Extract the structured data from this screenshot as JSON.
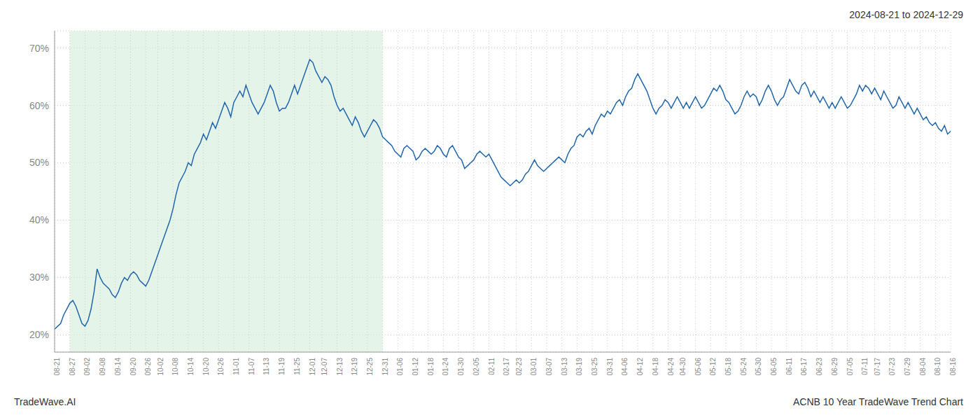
{
  "chart_data": {
    "type": "line",
    "title": "ACNB 10 Year TradeWave Trend Chart",
    "subtitle": "2024-08-21 to 2024-12-29",
    "annotations": [
      "TradeWave.AI"
    ],
    "color": "#2166ac",
    "grid": true,
    "ylim": [
      17,
      73
    ],
    "yticks": [
      {
        "value": 20,
        "label": "20%"
      },
      {
        "value": 30,
        "label": "30%"
      },
      {
        "value": 40,
        "label": "40%"
      },
      {
        "value": 50,
        "label": "50%"
      },
      {
        "value": 60,
        "label": "60%"
      },
      {
        "value": 70,
        "label": "70%"
      }
    ],
    "shade": {
      "from": "08-27",
      "to": "12-31",
      "color": "#d4edda"
    },
    "categories": [
      "08-21",
      null,
      null,
      null,
      null,
      "08-27",
      null,
      null,
      null,
      null,
      "09-02",
      null,
      null,
      null,
      null,
      "09-08",
      null,
      null,
      null,
      null,
      "09-14",
      null,
      null,
      null,
      null,
      "09-20",
      null,
      null,
      null,
      null,
      "09-26",
      null,
      null,
      null,
      "10-02",
      null,
      null,
      null,
      null,
      "10-08",
      null,
      null,
      null,
      null,
      "10-14",
      null,
      null,
      null,
      null,
      "10-20",
      null,
      null,
      null,
      null,
      "10-26",
      null,
      null,
      null,
      null,
      "11-01",
      null,
      null,
      null,
      null,
      "11-07",
      null,
      null,
      null,
      null,
      "11-13",
      null,
      null,
      null,
      null,
      "11-19",
      null,
      null,
      null,
      null,
      "11-25",
      null,
      null,
      null,
      null,
      "12-01",
      null,
      null,
      null,
      "12-07",
      null,
      null,
      null,
      null,
      "12-13",
      null,
      null,
      null,
      null,
      "12-19",
      null,
      null,
      null,
      null,
      "12-25",
      null,
      null,
      null,
      null,
      "12-31",
      null,
      null,
      null,
      null,
      "01-06",
      null,
      null,
      null,
      null,
      "01-12",
      null,
      null,
      null,
      null,
      "01-18",
      null,
      null,
      null,
      null,
      "01-24",
      null,
      null,
      null,
      null,
      "01-30",
      null,
      null,
      null,
      null,
      "02-05",
      null,
      null,
      null,
      null,
      "02-11",
      null,
      null,
      null,
      null,
      "02-17",
      null,
      null,
      null,
      "02-23",
      null,
      null,
      null,
      null,
      "03-01",
      null,
      null,
      null,
      null,
      "03-07",
      null,
      null,
      null,
      null,
      "03-13",
      null,
      null,
      null,
      null,
      "03-19",
      null,
      null,
      null,
      null,
      "03-25",
      null,
      null,
      null,
      null,
      "03-31",
      null,
      null,
      null,
      null,
      "04-06",
      null,
      null,
      null,
      null,
      "04-12",
      null,
      null,
      null,
      null,
      "04-18",
      null,
      null,
      null,
      null,
      "04-24",
      null,
      null,
      null,
      "04-30",
      null,
      null,
      null,
      null,
      "05-06",
      null,
      null,
      null,
      null,
      "05-12",
      null,
      null,
      null,
      null,
      "05-18",
      null,
      null,
      null,
      null,
      "05-24",
      null,
      null,
      null,
      null,
      "05-30",
      null,
      null,
      null,
      null,
      "06-05",
      null,
      null,
      null,
      null,
      "06-11",
      null,
      null,
      null,
      null,
      "06-17",
      null,
      null,
      null,
      null,
      "06-23",
      null,
      null,
      null,
      null,
      "06-29",
      null,
      null,
      null,
      null,
      "07-05",
      null,
      null,
      null,
      null,
      "07-11",
      null,
      null,
      null,
      "07-17",
      null,
      null,
      null,
      null,
      "07-23",
      null,
      null,
      null,
      null,
      "07-29",
      null,
      null,
      null,
      null,
      "08-04",
      null,
      null,
      null,
      null,
      "08-10",
      null,
      null,
      null,
      null,
      "08-16"
    ],
    "values": [
      21.0,
      21.5,
      22.0,
      23.5,
      24.5,
      25.5,
      26.0,
      25.0,
      23.5,
      22.0,
      21.5,
      22.5,
      24.5,
      27.5,
      31.5,
      30.0,
      29.0,
      28.5,
      28.0,
      27.0,
      26.5,
      27.5,
      29.0,
      30.0,
      29.5,
      30.5,
      31.0,
      30.5,
      29.5,
      29.0,
      28.5,
      29.5,
      31.0,
      32.5,
      34.0,
      35.5,
      37.0,
      38.5,
      40.0,
      42.0,
      44.5,
      46.5,
      47.5,
      48.5,
      50.0,
      49.5,
      51.5,
      52.5,
      53.5,
      55.0,
      54.0,
      55.5,
      57.0,
      56.0,
      57.5,
      59.0,
      60.5,
      59.5,
      58.0,
      60.5,
      61.5,
      62.5,
      61.5,
      63.5,
      62.0,
      60.5,
      59.5,
      58.5,
      59.5,
      60.5,
      62.0,
      63.5,
      62.5,
      60.5,
      59.0,
      59.5,
      59.5,
      60.5,
      62.0,
      63.5,
      62.0,
      63.5,
      65.0,
      66.5,
      68.0,
      67.5,
      66.0,
      65.0,
      64.0,
      65.0,
      64.5,
      63.5,
      61.5,
      60.0,
      59.0,
      59.5,
      58.5,
      57.5,
      56.5,
      58.0,
      57.0,
      55.5,
      54.5,
      55.5,
      56.5,
      57.5,
      57.0,
      56.0,
      54.5,
      54.0,
      53.5,
      53.0,
      52.0,
      51.5,
      51.0,
      52.5,
      53.0,
      52.5,
      52.0,
      50.5,
      51.0,
      52.0,
      52.5,
      52.0,
      51.5,
      52.0,
      53.0,
      52.5,
      51.5,
      51.0,
      52.5,
      53.0,
      52.0,
      51.0,
      50.5,
      49.0,
      49.5,
      50.0,
      50.5,
      51.5,
      52.0,
      51.5,
      51.0,
      51.5,
      50.5,
      49.5,
      48.5,
      47.5,
      47.0,
      46.5,
      46.0,
      46.5,
      47.0,
      46.5,
      47.0,
      48.0,
      48.5,
      49.5,
      50.5,
      49.5,
      49.0,
      48.5,
      49.0,
      49.5,
      50.0,
      50.5,
      51.0,
      50.5,
      50.0,
      51.5,
      52.5,
      53.0,
      54.5,
      55.0,
      54.5,
      55.5,
      56.0,
      55.0,
      56.5,
      57.5,
      58.5,
      58.0,
      59.0,
      58.5,
      59.5,
      60.5,
      61.0,
      60.0,
      61.5,
      62.5,
      63.0,
      64.5,
      65.5,
      64.5,
      63.5,
      62.5,
      61.0,
      59.5,
      58.5,
      59.5,
      60.0,
      61.0,
      60.5,
      59.5,
      60.5,
      61.5,
      60.5,
      59.5,
      60.5,
      59.5,
      60.5,
      61.5,
      60.5,
      59.5,
      60.0,
      61.0,
      62.0,
      63.0,
      62.5,
      63.5,
      62.5,
      61.0,
      60.5,
      59.5,
      58.5,
      59.0,
      60.0,
      61.5,
      62.5,
      61.5,
      62.0,
      61.5,
      60.0,
      61.0,
      62.5,
      63.5,
      62.5,
      61.0,
      60.0,
      61.0,
      61.5,
      63.0,
      64.5,
      63.5,
      62.5,
      62.0,
      63.5,
      64.0,
      63.0,
      61.5,
      62.5,
      61.5,
      60.5,
      61.5,
      60.5,
      59.5,
      60.5,
      59.5,
      60.5,
      61.5,
      60.5,
      59.5,
      60.0,
      61.0,
      62.0,
      63.5,
      62.5,
      63.5,
      63.0,
      62.0,
      63.0,
      62.0,
      61.0,
      62.5,
      61.5,
      60.5,
      59.5,
      60.0,
      61.5,
      60.5,
      59.5,
      60.5,
      59.5,
      58.5,
      59.5,
      58.5,
      57.5,
      58.0,
      57.0,
      56.5,
      57.0,
      56.0,
      55.5,
      56.5,
      55.0,
      55.5
    ]
  }
}
